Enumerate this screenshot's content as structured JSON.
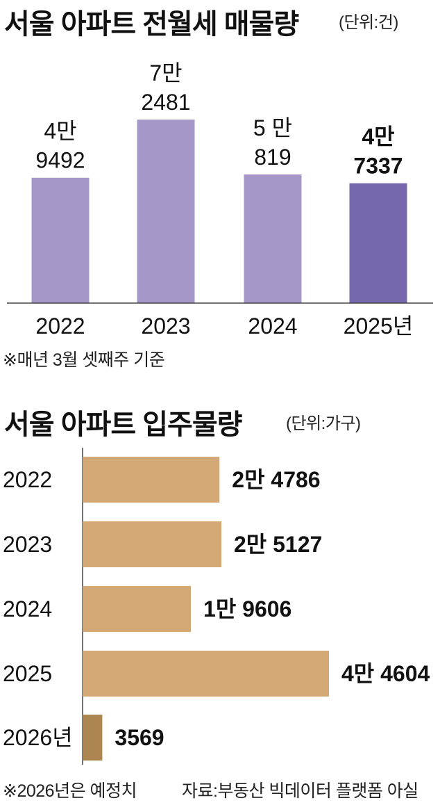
{
  "chart_data": [
    {
      "type": "bar",
      "title": "서울 아파트 전월세 매물량",
      "unit": "(단위:건)",
      "categories": [
        "2022",
        "2023",
        "2024",
        "2025년"
      ],
      "values": [
        49492,
        72481,
        50819,
        47337
      ],
      "value_labels": [
        [
          "4만",
          "9492"
        ],
        [
          "7만",
          "2481"
        ],
        [
          "5 만",
          "819"
        ],
        [
          "4만",
          "7337"
        ]
      ],
      "highlight_index": 3,
      "colors": {
        "bar": "#a598c9",
        "highlight": "#7767ad"
      },
      "note": "※매년 3월 셋째주 기준"
    },
    {
      "type": "bar",
      "orientation": "horizontal",
      "title": "서울 아파트 입주물량",
      "unit": "(단위:가구)",
      "categories": [
        "2022",
        "2023",
        "2024",
        "2025",
        "2026년"
      ],
      "values": [
        24786,
        25127,
        19606,
        44604,
        3569
      ],
      "value_labels": [
        "2만 4786",
        "2만 5127",
        "1만 9606",
        "4만 4604",
        "3569"
      ],
      "highlight_index": 4,
      "colors": {
        "bar": "#d4a874",
        "highlight": "#ad8550"
      },
      "note": "※2026년은 예정치",
      "source": "자료:부동산 빅데이터 플랫폼 아실"
    }
  ]
}
